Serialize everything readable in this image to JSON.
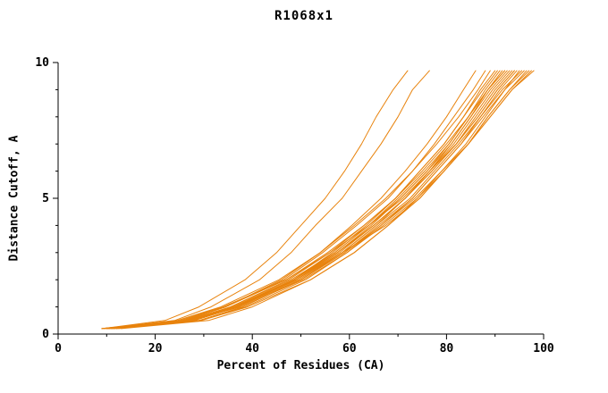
{
  "page": {
    "background": "#ffffff"
  },
  "chart_data": {
    "type": "line",
    "title": "R1068x1",
    "xlabel": "Percent of Residues (CA)",
    "ylabel": "Distance Cutoff, A",
    "xlim": [
      0,
      100
    ],
    "ylim": [
      0,
      10
    ],
    "x_major_ticks": [
      0,
      20,
      40,
      60,
      80,
      100
    ],
    "x_minor_ticks": [
      10,
      30,
      50,
      70,
      90
    ],
    "y_major_ticks": [
      0,
      5,
      10
    ],
    "y_minor_ticks": [
      1,
      2,
      3,
      4,
      6,
      7,
      8,
      9
    ],
    "grid": false,
    "legend": "none",
    "line_color": "#e8830d",
    "axis_color": "#000000",
    "y_grid": [
      0.2,
      0.5,
      1,
      2,
      3,
      4,
      5,
      6,
      7,
      8,
      9,
      9.7
    ],
    "series": [
      [
        9,
        27.5,
        37.5,
        50.5,
        59.5,
        67,
        74,
        79.5,
        84.5,
        89,
        93.5,
        98
      ],
      [
        10,
        26,
        36,
        49,
        58.5,
        67.5,
        74.5,
        79.5,
        84.5,
        88.5,
        93,
        97
      ],
      [
        11,
        29.5,
        39,
        52,
        61,
        68,
        74,
        79,
        84,
        88,
        92,
        96
      ],
      [
        9.5,
        27,
        36.5,
        49.5,
        58.5,
        65.5,
        72.5,
        77.5,
        82.5,
        87,
        91.5,
        95.5
      ],
      [
        10.5,
        28,
        37,
        50,
        59,
        66,
        73,
        78,
        83,
        87.5,
        92,
        95
      ],
      [
        12,
        29,
        38.5,
        51,
        59.5,
        66.5,
        73,
        78,
        83,
        87,
        91,
        94.5
      ],
      [
        9,
        25,
        34,
        47,
        56,
        64,
        71,
        76.5,
        82,
        86.5,
        90.5,
        94
      ],
      [
        10,
        27,
        36,
        48.5,
        57.5,
        65,
        71.5,
        77,
        82,
        86,
        90,
        93.5
      ],
      [
        11.5,
        28,
        37,
        49,
        58,
        65,
        71.5,
        76.5,
        81.5,
        85.5,
        89.5,
        93
      ],
      [
        10,
        26.5,
        35.5,
        48,
        57,
        64,
        70.5,
        76,
        81,
        85,
        89,
        92.5
      ],
      [
        12.5,
        29,
        38,
        50,
        58.5,
        65.5,
        71.5,
        76.5,
        81,
        85,
        88.5,
        92
      ],
      [
        9.5,
        25.5,
        34.5,
        47,
        55.5,
        63,
        69.5,
        75,
        80,
        84.5,
        88.5,
        91.5
      ],
      [
        11,
        27.5,
        36.5,
        48.5,
        57,
        64,
        70,
        75.5,
        80.5,
        84.5,
        88,
        91
      ],
      [
        10.5,
        26.5,
        35.5,
        47.5,
        56,
        63,
        69.5,
        74.5,
        79.5,
        83.5,
        87.5,
        90.5
      ],
      [
        12,
        28,
        37,
        48.5,
        56.5,
        63.5,
        69.5,
        74.5,
        79.5,
        83.5,
        87,
        90
      ],
      [
        9,
        24.5,
        33.5,
        45.5,
        54,
        61,
        67.5,
        73,
        78,
        82.5,
        86.5,
        89
      ],
      [
        10,
        26,
        34.5,
        46.5,
        54.5,
        61.5,
        68,
        73,
        77.5,
        81.5,
        85.5,
        88
      ],
      [
        13,
        31,
        40,
        52,
        61,
        68,
        74.5,
        79.5,
        84.5,
        88.5,
        93,
        96.5
      ],
      [
        10,
        26,
        34.5,
        46,
        54,
        60.5,
        66.5,
        71.5,
        76,
        80,
        83.5,
        86
      ],
      [
        9,
        22,
        29,
        38.5,
        45,
        50,
        55,
        59,
        62.5,
        65.5,
        69,
        72
      ],
      [
        10,
        24,
        31.5,
        41.5,
        48,
        53,
        58.5,
        62.5,
        66.5,
        70,
        73,
        76.5
      ],
      [
        11,
        28,
        37,
        50,
        59,
        66.5,
        73.5,
        79,
        84.5,
        89,
        93.5,
        97.5
      ],
      [
        10.5,
        27,
        36,
        48.5,
        57.5,
        65,
        71.5,
        77,
        82,
        86.5,
        90.5,
        94
      ],
      [
        11.5,
        28,
        37,
        49,
        57.5,
        64.5,
        70.5,
        76,
        80.5,
        84.5,
        88.5,
        92
      ]
    ]
  }
}
